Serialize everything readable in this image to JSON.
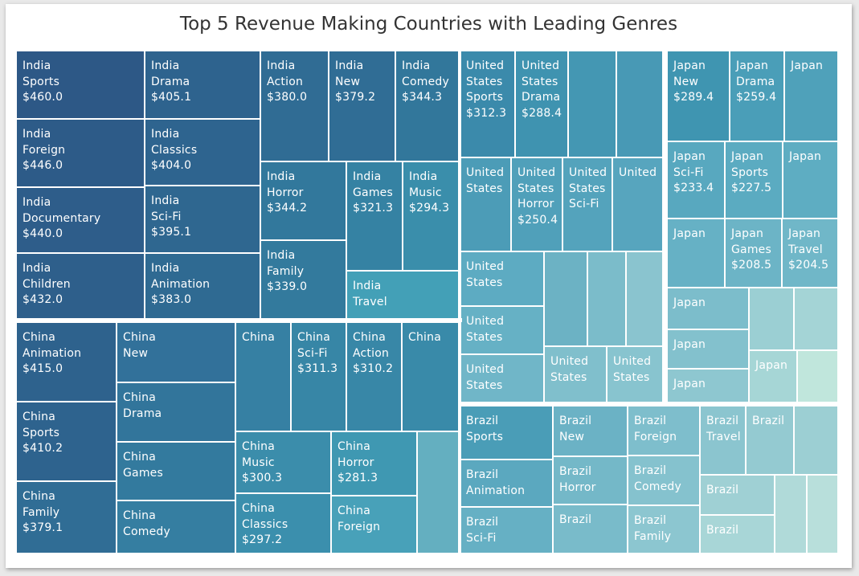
{
  "chart_data": {
    "type": "treemap",
    "title": "Top 5 Revenue Making Countries with Leading Genres",
    "value_format": "currency",
    "countries": [
      {
        "name": "India",
        "tiles": [
          {
            "lines": [
              "India",
              "Sports",
              "$460.0"
            ],
            "genre": "Sports",
            "value": 460.0,
            "color": "#2d5886"
          },
          {
            "lines": [
              "India",
              "Foreign",
              "$446.0"
            ],
            "genre": "Foreign",
            "value": 446.0,
            "color": "#2d5b88"
          },
          {
            "lines": [
              "India",
              "Documentary",
              "$440.0"
            ],
            "genre": "Documentary",
            "value": 440.0,
            "color": "#2e5d8a"
          },
          {
            "lines": [
              "India",
              "Children",
              "$432.0"
            ],
            "genre": "Children",
            "value": 432.0,
            "color": "#2e5f8b"
          },
          {
            "lines": [
              "India",
              "Drama",
              "$405.1"
            ],
            "genre": "Drama",
            "value": 405.1,
            "color": "#2e638e"
          },
          {
            "lines": [
              "India",
              "Classics",
              "$404.0"
            ],
            "genre": "Classics",
            "value": 404.0,
            "color": "#2e648f"
          },
          {
            "lines": [
              "India",
              "Sci-Fi",
              "$395.1"
            ],
            "genre": "Sci-Fi",
            "value": 395.1,
            "color": "#2f6790"
          },
          {
            "lines": [
              "India",
              "Animation",
              "$383.0"
            ],
            "genre": "Animation",
            "value": 383.0,
            "color": "#2f6a92"
          },
          {
            "lines": [
              "India",
              "Action",
              "$380.0"
            ],
            "genre": "Action",
            "value": 380.0,
            "color": "#306c94"
          },
          {
            "lines": [
              "India",
              "New",
              "$379.2"
            ],
            "genre": "New",
            "value": 379.2,
            "color": "#306d95"
          },
          {
            "lines": [
              "India",
              "Comedy",
              "$344.3"
            ],
            "genre": "Comedy",
            "value": 344.3,
            "color": "#32779b"
          },
          {
            "lines": [
              "India",
              "Horror",
              "$344.2"
            ],
            "genre": "Horror",
            "value": 344.2,
            "color": "#32789c"
          },
          {
            "lines": [
              "India",
              "Family",
              "$339.0"
            ],
            "genre": "Family",
            "value": 339.0,
            "color": "#337a9d"
          },
          {
            "lines": [
              "India",
              "Games",
              "$321.3"
            ],
            "genre": "Games",
            "value": 321.3,
            "color": "#3582a3"
          },
          {
            "lines": [
              "India",
              "Music",
              "$294.3"
            ],
            "genre": "Music",
            "value": 294.3,
            "color": "#3a8eab"
          },
          {
            "lines": [
              "India",
              "Travel"
            ],
            "genre": "Travel",
            "value": null,
            "color": "#43a0b7"
          }
        ]
      },
      {
        "name": "China",
        "tiles": [
          {
            "lines": [
              "China",
              "Animation",
              "$415.0"
            ],
            "genre": "Animation",
            "value": 415.0,
            "color": "#2e628d"
          },
          {
            "lines": [
              "China",
              "Sports",
              "$410.2"
            ],
            "genre": "Sports",
            "value": 410.2,
            "color": "#2e638e"
          },
          {
            "lines": [
              "China",
              "Family",
              "$379.1"
            ],
            "genre": "Family",
            "value": 379.1,
            "color": "#306d95"
          },
          {
            "lines": [
              "China",
              "New"
            ],
            "genre": "New",
            "value": null,
            "color": "#32719a"
          },
          {
            "lines": [
              "China",
              "Drama"
            ],
            "genre": "Drama",
            "value": null,
            "color": "#32759b"
          },
          {
            "lines": [
              "China",
              "Games"
            ],
            "genre": "Games",
            "value": null,
            "color": "#337a9e"
          },
          {
            "lines": [
              "China",
              "Comedy"
            ],
            "genre": "Comedy",
            "value": null,
            "color": "#357ea1"
          },
          {
            "lines": [
              "China"
            ],
            "genre": "",
            "value": null,
            "color": "#3680a3"
          },
          {
            "lines": [
              "China",
              "Sci-Fi",
              "$311.3"
            ],
            "genre": "Sci-Fi",
            "value": 311.3,
            "color": "#3786a6"
          },
          {
            "lines": [
              "China",
              "Action",
              "$310.2"
            ],
            "genre": "Action",
            "value": 310.2,
            "color": "#3887a7"
          },
          {
            "lines": [
              "China"
            ],
            "genre": "",
            "value": null,
            "color": "#398aa9"
          },
          {
            "lines": [
              "China",
              "Music",
              "$300.3"
            ],
            "genre": "Music",
            "value": 300.3,
            "color": "#3b8dab"
          },
          {
            "lines": [
              "China",
              "Classics",
              "$297.2"
            ],
            "genre": "Classics",
            "value": 297.2,
            "color": "#3b8fad"
          },
          {
            "lines": [
              "China",
              "Horror",
              "$281.3"
            ],
            "genre": "Horror",
            "value": 281.3,
            "color": "#3f98b2"
          },
          {
            "lines": [
              "China",
              "Foreign"
            ],
            "genre": "Foreign",
            "value": null,
            "color": "#48a1b9"
          },
          {
            "lines": [],
            "genre": "",
            "value": null,
            "color": "#64afc0"
          }
        ]
      },
      {
        "name": "United States",
        "tiles": [
          {
            "lines": [
              "United",
              "States",
              "Sports",
              "$312.3"
            ],
            "genre": "Sports",
            "value": 312.3,
            "color": "#3b8aab"
          },
          {
            "lines": [
              "United",
              "States",
              "Drama",
              "$288.4"
            ],
            "genre": "Drama",
            "value": 288.4,
            "color": "#3f93b0"
          },
          {
            "lines": [],
            "genre": "",
            "value": null,
            "color": "#4497b3"
          },
          {
            "lines": [],
            "genre": "",
            "value": null,
            "color": "#4899b5"
          },
          {
            "lines": [
              "United",
              "States"
            ],
            "genre": "",
            "value": null,
            "color": "#4c9cb7"
          },
          {
            "lines": [
              "United",
              "States",
              "Horror",
              "$250.4"
            ],
            "genre": "Horror",
            "value": 250.4,
            "color": "#50a0ba"
          },
          {
            "lines": [
              "United",
              "States",
              "Sci-Fi"
            ],
            "genre": "Sci-Fi",
            "value": null,
            "color": "#54a3bc"
          },
          {
            "lines": [
              "United"
            ],
            "genre": "",
            "value": null,
            "color": "#57a5be"
          },
          {
            "lines": [
              "United",
              "States"
            ],
            "genre": "",
            "value": null,
            "color": "#5dabc2"
          },
          {
            "lines": [],
            "genre": "",
            "value": null,
            "color": "#6cb2c4"
          },
          {
            "lines": [],
            "genre": "",
            "value": null,
            "color": "#7bbcca"
          },
          {
            "lines": [],
            "genre": "",
            "value": null,
            "color": "#8ac4cf"
          },
          {
            "lines": [
              "United",
              "States"
            ],
            "genre": "",
            "value": null,
            "color": "#66b1c5"
          },
          {
            "lines": [
              "United",
              "States"
            ],
            "genre": "",
            "value": null,
            "color": "#70b6c8"
          },
          {
            "lines": [
              "United",
              "States"
            ],
            "genre": "",
            "value": null,
            "color": "#80bfcc"
          },
          {
            "lines": [
              "United",
              "States"
            ],
            "genre": "",
            "value": null,
            "color": "#88c4cf"
          }
        ]
      },
      {
        "name": "Japan",
        "tiles": [
          {
            "lines": [
              "Japan",
              "New",
              "$289.4"
            ],
            "genre": "New",
            "value": 289.4,
            "color": "#3f95b1"
          },
          {
            "lines": [
              "Japan",
              "Drama",
              "$259.4"
            ],
            "genre": "Drama",
            "value": 259.4,
            "color": "#4a9eb8"
          },
          {
            "lines": [
              "Japan"
            ],
            "genre": "",
            "value": null,
            "color": "#4fa1ba"
          },
          {
            "lines": [
              "Japan",
              "Sci-Fi",
              "$233.4"
            ],
            "genre": "Sci-Fi",
            "value": 233.4,
            "color": "#58a8bf"
          },
          {
            "lines": [
              "Japan",
              "Sports",
              "$227.5"
            ],
            "genre": "Sports",
            "value": 227.5,
            "color": "#5babc1"
          },
          {
            "lines": [
              "Japan"
            ],
            "genre": "",
            "value": null,
            "color": "#5eadc2"
          },
          {
            "lines": [
              "Japan"
            ],
            "genre": "",
            "value": null,
            "color": "#66b1c5"
          },
          {
            "lines": [
              "Japan",
              "Games",
              "$208.5"
            ],
            "genre": "Games",
            "value": 208.5,
            "color": "#6cb4c6"
          },
          {
            "lines": [
              "Japan",
              "Travel",
              "$204.5"
            ],
            "genre": "Travel",
            "value": 204.5,
            "color": "#70b7c8"
          },
          {
            "lines": [
              "Japan"
            ],
            "genre": "",
            "value": null,
            "color": "#7cbdcb"
          },
          {
            "lines": [],
            "genre": "",
            "value": null,
            "color": "#9bcfd3"
          },
          {
            "lines": [],
            "genre": "",
            "value": null,
            "color": "#a4d4d6"
          },
          {
            "lines": [
              "Japan"
            ],
            "genre": "",
            "value": null,
            "color": "#83c1cd"
          },
          {
            "lines": [
              "Japan"
            ],
            "genre": "",
            "value": null,
            "color": "#8ec7d0"
          },
          {
            "lines": [
              "Japan"
            ],
            "genre": "",
            "value": null,
            "color": "#a6d6d6"
          },
          {
            "lines": [],
            "genre": "",
            "value": null,
            "color": "#c0e6dc"
          }
        ]
      },
      {
        "name": "Brazil",
        "tiles": [
          {
            "lines": [
              "Brazil",
              "Sports"
            ],
            "genre": "Sports",
            "value": null,
            "color": "#4a9db7"
          },
          {
            "lines": [
              "Brazil",
              "Animation"
            ],
            "genre": "Animation",
            "value": null,
            "color": "#5ba8bf"
          },
          {
            "lines": [
              "Brazil",
              "Sci-Fi"
            ],
            "genre": "Sci-Fi",
            "value": null,
            "color": "#66b0c4"
          },
          {
            "lines": [
              "Brazil",
              "New"
            ],
            "genre": "New",
            "value": null,
            "color": "#6bb2c5"
          },
          {
            "lines": [
              "Brazil",
              "Horror"
            ],
            "genre": "Horror",
            "value": null,
            "color": "#74b8c8"
          },
          {
            "lines": [
              "Brazil"
            ],
            "genre": "",
            "value": null,
            "color": "#79bbca"
          },
          {
            "lines": [
              "Brazil",
              "Foreign"
            ],
            "genre": "Foreign",
            "value": null,
            "color": "#7ebecc"
          },
          {
            "lines": [
              "Brazil",
              "Comedy"
            ],
            "genre": "Comedy",
            "value": null,
            "color": "#85c2ce"
          },
          {
            "lines": [
              "Brazil",
              "Family"
            ],
            "genre": "Family",
            "value": null,
            "color": "#8cc6d0"
          },
          {
            "lines": [
              "Brazil",
              "Travel"
            ],
            "genre": "Travel",
            "value": null,
            "color": "#8bc5cf"
          },
          {
            "lines": [
              "Brazil"
            ],
            "genre": "",
            "value": null,
            "color": "#94cad1"
          },
          {
            "lines": [],
            "genre": "",
            "value": null,
            "color": "#9ccfd3"
          },
          {
            "lines": [
              "Brazil"
            ],
            "genre": "",
            "value": null,
            "color": "#9fd0d4"
          },
          {
            "lines": [
              "Brazil"
            ],
            "genre": "",
            "value": null,
            "color": "#a8d6d7"
          },
          {
            "lines": [],
            "genre": "",
            "value": null,
            "color": "#b0dad9"
          },
          {
            "lines": [],
            "genre": "",
            "value": null,
            "color": "#b8dfdb"
          }
        ]
      }
    ]
  }
}
